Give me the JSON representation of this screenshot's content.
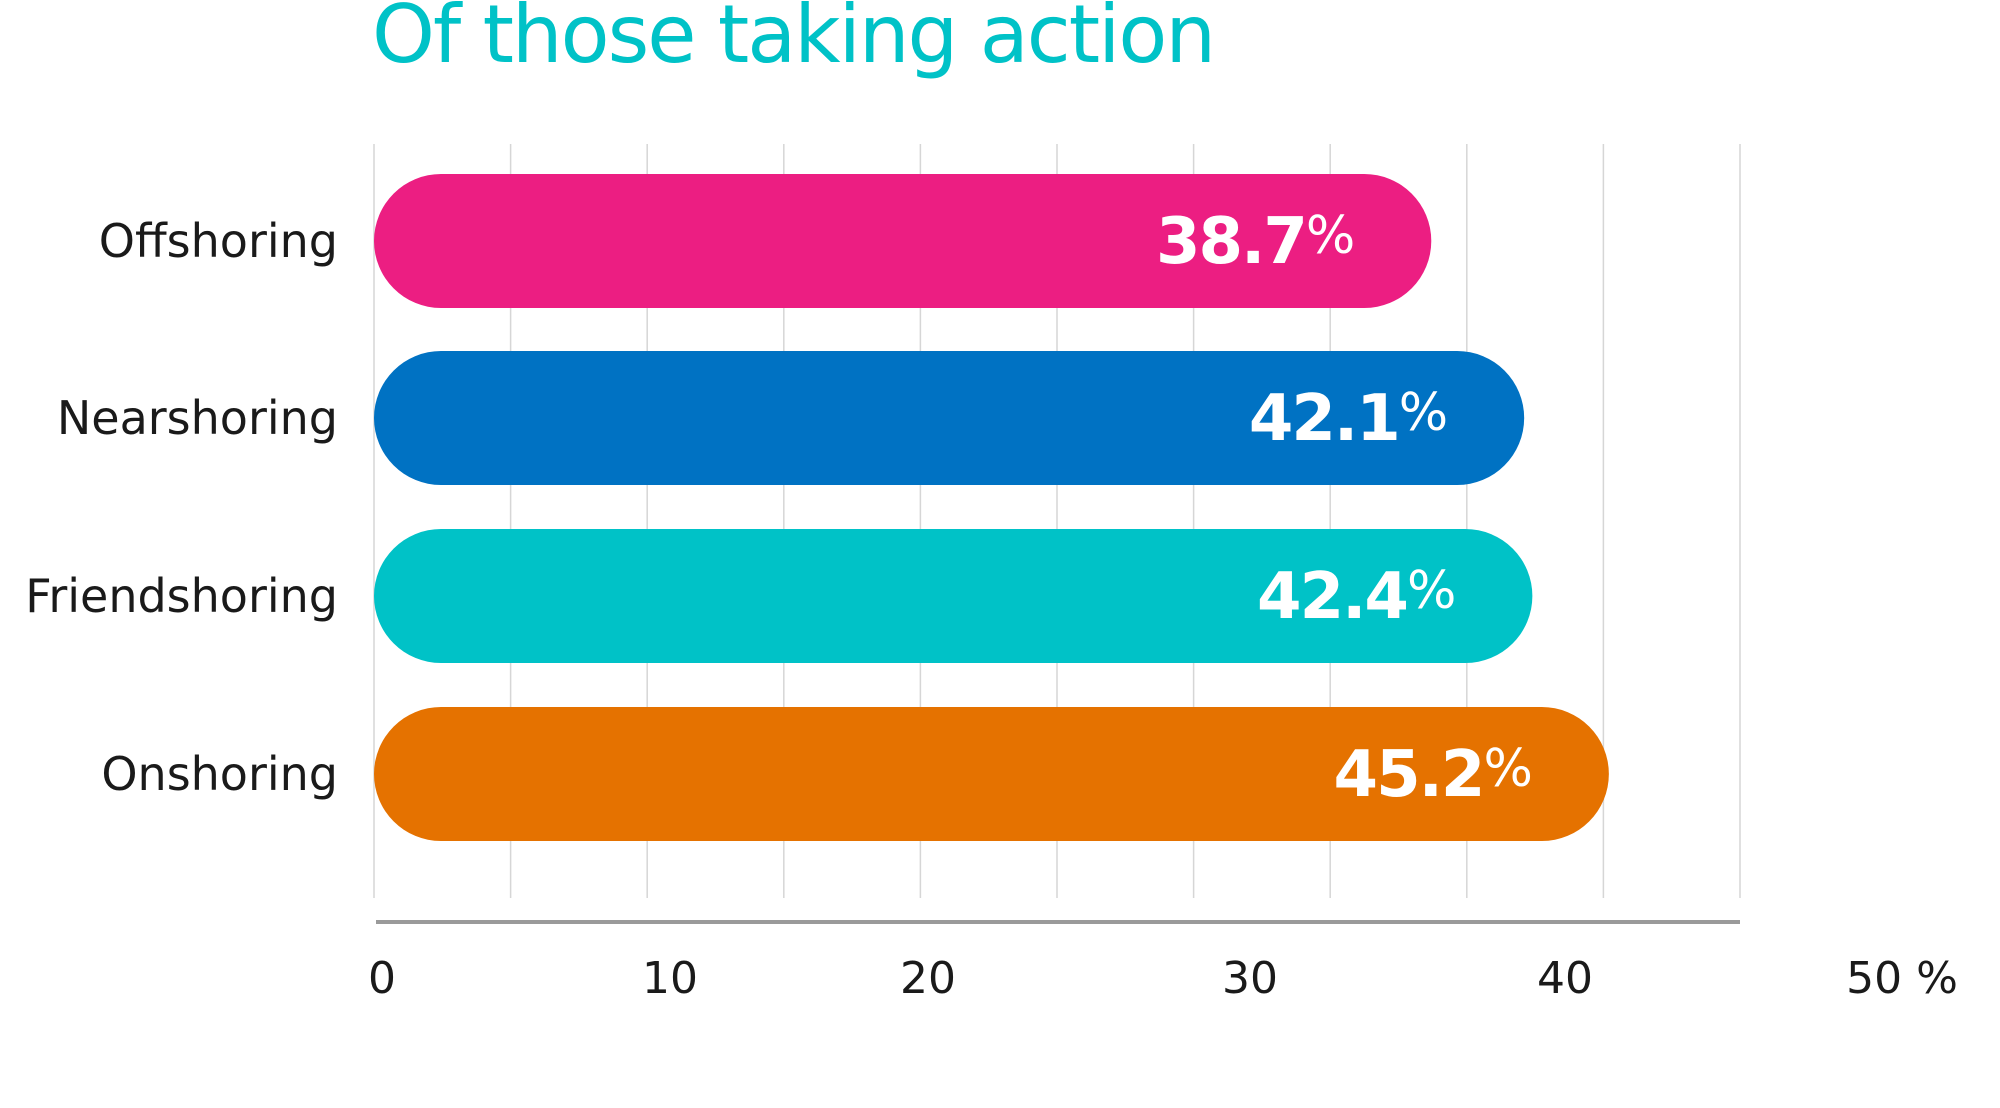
{
  "chart_data": {
    "type": "bar",
    "orientation": "horizontal",
    "title": "Of those taking action",
    "categories": [
      "Offshoring",
      "Nearshoring",
      "Friendshoring",
      "Onshoring"
    ],
    "values": [
      38.7,
      42.1,
      42.4,
      45.2
    ],
    "value_labels": [
      "38.7",
      "42.1",
      "42.4",
      "45.2"
    ],
    "value_suffix": "%",
    "colors": [
      "#ec1e82",
      "#0072c3",
      "#00c2c7",
      "#e57200"
    ],
    "xlim": [
      0,
      50
    ],
    "x_ticks": [
      "0",
      "10",
      "20",
      "30",
      "40",
      "50 %"
    ],
    "grid": true
  }
}
